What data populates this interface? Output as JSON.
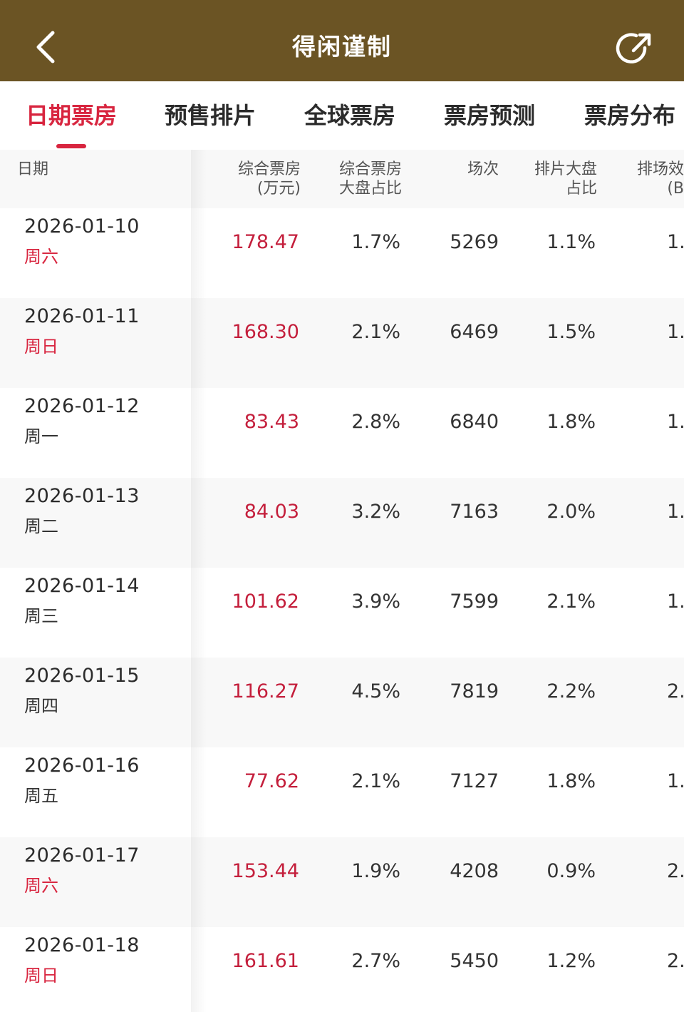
{
  "header": {
    "title": "得闲谨制",
    "back_icon": "chevron-left-icon",
    "share_icon": "share-icon"
  },
  "tabs": [
    {
      "label": "日期票房",
      "active": true
    },
    {
      "label": "预售排片",
      "active": false
    },
    {
      "label": "全球票房",
      "active": false
    },
    {
      "label": "票房预测",
      "active": false
    },
    {
      "label": "票房分布",
      "active": false
    }
  ],
  "table": {
    "columns": [
      "日期",
      "综合票房\n(万元)",
      "综合票房\n大盘占比",
      "场次",
      "排片大盘\n占比",
      "排场效益\n(B值"
    ],
    "rows": [
      {
        "date": "2026-01-10",
        "weekday": "周六",
        "weekend": true,
        "box": "178.47",
        "share": "1.7%",
        "shows": "5269",
        "show_share": "1.1%",
        "efficiency": "1."
      },
      {
        "date": "2026-01-11",
        "weekday": "周日",
        "weekend": true,
        "box": "168.30",
        "share": "2.1%",
        "shows": "6469",
        "show_share": "1.5%",
        "efficiency": "1."
      },
      {
        "date": "2026-01-12",
        "weekday": "周一",
        "weekend": false,
        "box": "83.43",
        "share": "2.8%",
        "shows": "6840",
        "show_share": "1.8%",
        "efficiency": "1."
      },
      {
        "date": "2026-01-13",
        "weekday": "周二",
        "weekend": false,
        "box": "84.03",
        "share": "3.2%",
        "shows": "7163",
        "show_share": "2.0%",
        "efficiency": "1."
      },
      {
        "date": "2026-01-14",
        "weekday": "周三",
        "weekend": false,
        "box": "101.62",
        "share": "3.9%",
        "shows": "7599",
        "show_share": "2.1%",
        "efficiency": "1."
      },
      {
        "date": "2026-01-15",
        "weekday": "周四",
        "weekend": false,
        "box": "116.27",
        "share": "4.5%",
        "shows": "7819",
        "show_share": "2.2%",
        "efficiency": "2."
      },
      {
        "date": "2026-01-16",
        "weekday": "周五",
        "weekend": false,
        "box": "77.62",
        "share": "2.1%",
        "shows": "7127",
        "show_share": "1.8%",
        "efficiency": "1."
      },
      {
        "date": "2026-01-17",
        "weekday": "周六",
        "weekend": true,
        "box": "153.44",
        "share": "1.9%",
        "shows": "4208",
        "show_share": "0.9%",
        "efficiency": "2."
      },
      {
        "date": "2026-01-18",
        "weekday": "周日",
        "weekend": true,
        "box": "161.61",
        "share": "2.7%",
        "shows": "5450",
        "show_share": "1.2%",
        "efficiency": "2."
      }
    ]
  }
}
